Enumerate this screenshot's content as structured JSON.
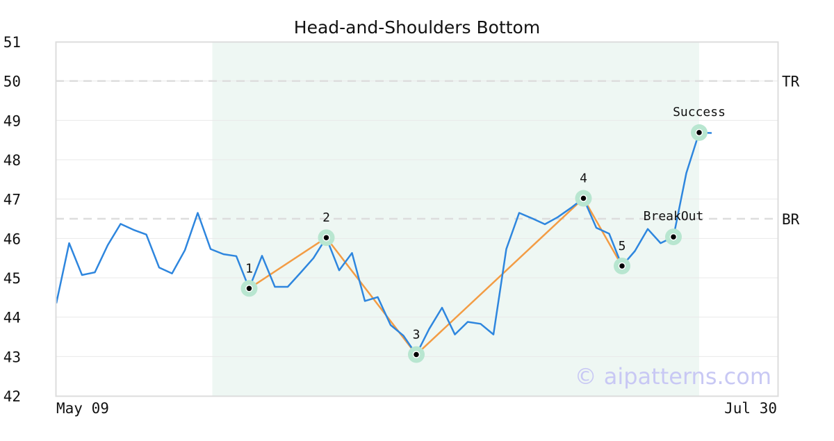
{
  "chart_data": {
    "type": "line",
    "title": "Head-and-Shoulders Bottom",
    "xlabel": "",
    "ylabel": "",
    "ylim": [
      42,
      51
    ],
    "yticks": [
      42,
      43,
      44,
      45,
      46,
      47,
      48,
      49,
      50,
      51
    ],
    "x_tick_labels": [
      "May 09",
      "Jul 30"
    ],
    "grid": true,
    "colors": {
      "price": "#2e86de",
      "pattern": "#f39c44",
      "shade": "#eef7f3",
      "marker_halo": "#b8e6d0",
      "refline": "#dddddd",
      "frame": "#dcdcdc"
    },
    "price_series": [
      44.35,
      45.88,
      45.07,
      45.14,
      45.83,
      46.37,
      46.22,
      46.1,
      45.26,
      45.11,
      45.7,
      46.65,
      45.73,
      45.6,
      45.55,
      44.73,
      45.56,
      44.77,
      44.77,
      45.13,
      45.5,
      46.02,
      45.19,
      45.63,
      44.41,
      44.51,
      43.8,
      43.53,
      43.05,
      43.7,
      44.24,
      43.56,
      43.88,
      43.83,
      43.56,
      45.73,
      46.65,
      46.51,
      46.36,
      46.54,
      46.77,
      47.02,
      46.27,
      46.12,
      45.3,
      45.68,
      46.24,
      45.88,
      46.04,
      47.66,
      48.69,
      48.68
    ],
    "shaded_range": {
      "start_index": 13,
      "end_index": 50
    },
    "reference_lines": [
      {
        "label": "TR",
        "value": 50.0
      },
      {
        "label": "BR",
        "value": 46.5
      }
    ],
    "pattern_points": [
      {
        "label": "1",
        "index": 15,
        "value": 44.73
      },
      {
        "label": "2",
        "index": 21,
        "value": 46.02
      },
      {
        "label": "3",
        "index": 28,
        "value": 43.05
      },
      {
        "label": "4",
        "index": 41,
        "value": 47.02
      },
      {
        "label": "5",
        "index": 44,
        "value": 45.3
      }
    ],
    "annotations": [
      {
        "label": "BreakOut",
        "index": 48,
        "value": 46.04
      },
      {
        "label": "Success",
        "index": 50,
        "value": 48.69
      }
    ],
    "watermark": "© aipatterns.com"
  }
}
